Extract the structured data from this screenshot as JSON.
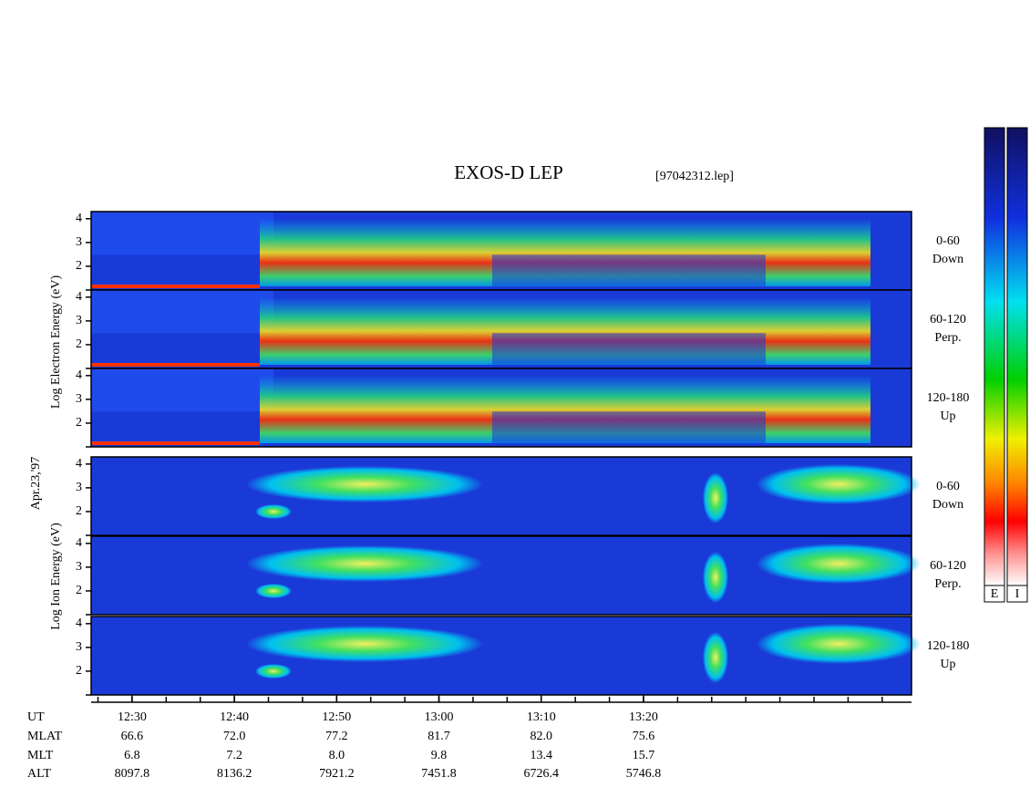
{
  "chart_data": {
    "type": "spectrogram",
    "title": "EXOS-D LEP",
    "file": "[97042312.lep]",
    "date": "Apr.23,'97",
    "groups": [
      {
        "label": "Log Electron Energy (eV)",
        "panels": [
          {
            "angle": "0-60",
            "direction": "Down"
          },
          {
            "angle": "60-120",
            "direction": "Perp."
          },
          {
            "angle": "120-180",
            "direction": "Up"
          }
        ]
      },
      {
        "label": "Log Ion Energy (eV)",
        "panels": [
          {
            "angle": "0-60",
            "direction": "Down"
          },
          {
            "angle": "60-120",
            "direction": "Perp."
          },
          {
            "angle": "120-180",
            "direction": "Up"
          }
        ]
      }
    ],
    "ylim": [
      1,
      4.3
    ],
    "yticks": [
      2,
      3,
      4
    ],
    "xlim": [
      746,
      826.2
    ],
    "xticks": [
      {
        "value": 750,
        "label": "12:30"
      },
      {
        "value": 760,
        "label": "12:40"
      },
      {
        "value": 770,
        "label": "12:50"
      },
      {
        "value": 780,
        "label": "13:00"
      },
      {
        "value": 790,
        "label": "13:10"
      },
      {
        "value": 800,
        "label": "13:20"
      }
    ],
    "ephemeris": {
      "label": "UT",
      "rows": [
        {
          "name": "MLAT",
          "values": [
            "66.6",
            "72.0",
            "77.2",
            "81.7",
            "82.0",
            "75.6"
          ]
        },
        {
          "name": "MLT",
          "values": [
            "6.8",
            "7.2",
            "8.0",
            "9.8",
            "13.4",
            "15.7"
          ]
        },
        {
          "name": "ALT",
          "values": [
            "8097.8",
            "8136.2",
            "7921.2",
            "7451.8",
            "6726.4",
            "5746.8"
          ]
        }
      ]
    },
    "colorbars": [
      "E",
      "I"
    ]
  }
}
